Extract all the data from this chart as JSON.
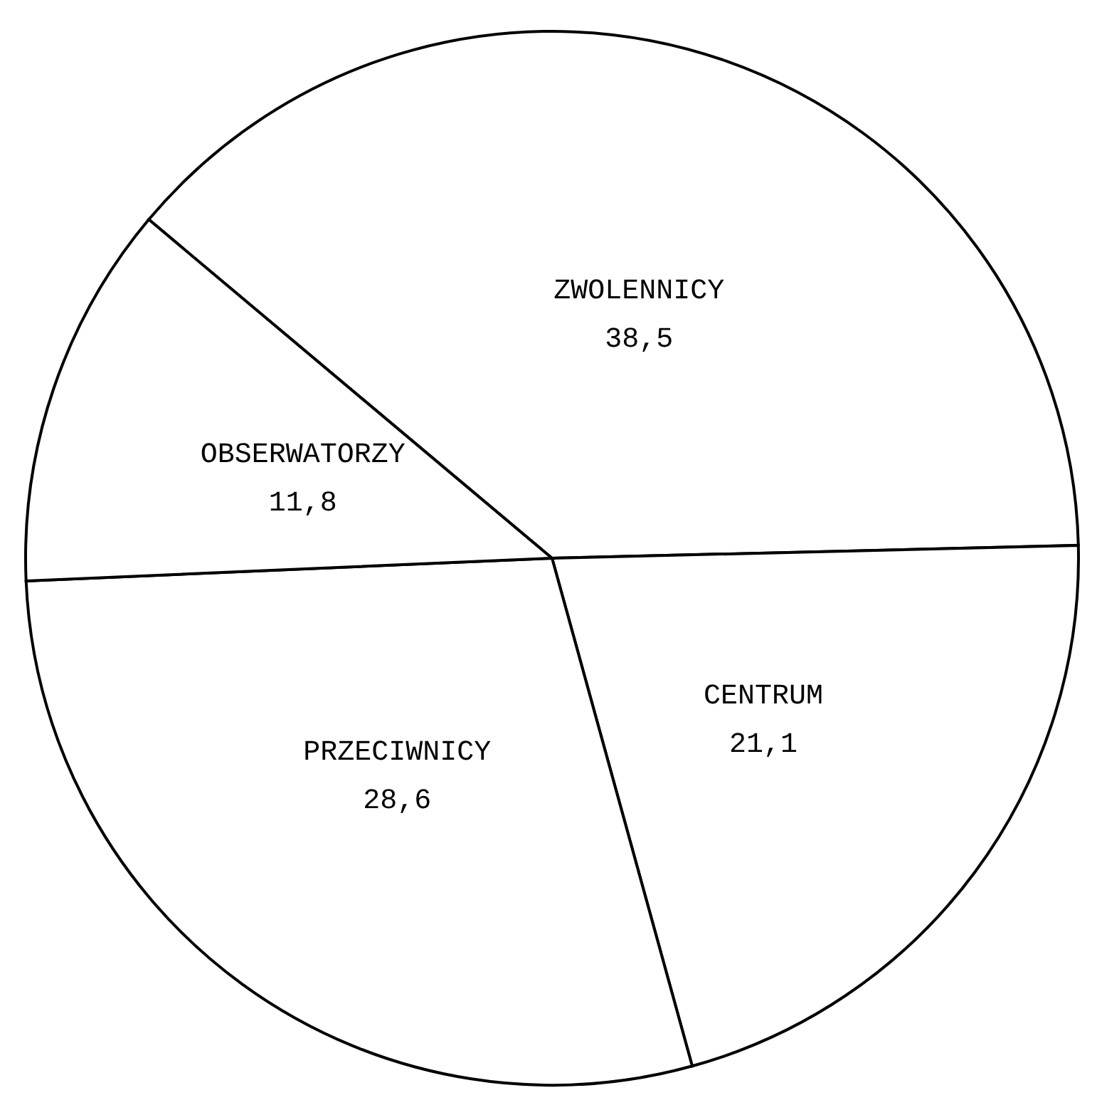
{
  "chart_data": {
    "type": "pie",
    "categories": [
      "ZWOLENNICY",
      "CENTRUM",
      "PRZECIWNICY",
      "OBSERWATORZY"
    ],
    "values": [
      38.5,
      21.1,
      28.6,
      11.8
    ],
    "value_labels": [
      "38,5",
      "21,1",
      "28,6",
      "11,8"
    ],
    "colors": [
      "#ffffff",
      "#ffffff",
      "#ffffff",
      "#ffffff"
    ],
    "legend": false
  }
}
